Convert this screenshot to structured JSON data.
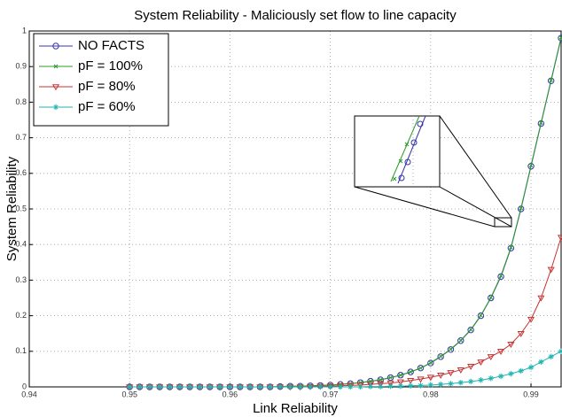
{
  "chart_data": {
    "type": "line",
    "title": "System Reliability - Maliciously set flow to line capacity",
    "xlabel": "Link Reliability",
    "ylabel": "System Reliability",
    "x": [
      0.95,
      0.951,
      0.952,
      0.953,
      0.954,
      0.955,
      0.956,
      0.957,
      0.958,
      0.959,
      0.96,
      0.961,
      0.962,
      0.963,
      0.964,
      0.965,
      0.966,
      0.967,
      0.968,
      0.969,
      0.97,
      0.971,
      0.972,
      0.973,
      0.974,
      0.975,
      0.976,
      0.977,
      0.978,
      0.979,
      0.98,
      0.981,
      0.982,
      0.983,
      0.984,
      0.985,
      0.986,
      0.987,
      0.988,
      0.989,
      0.99,
      0.991,
      0.992,
      0.993
    ],
    "series": [
      {
        "name": "NO FACTS",
        "color": "#3535a8",
        "marker": "circle",
        "values": [
          0,
          0,
          0,
          0,
          0,
          0,
          0,
          0,
          0,
          0,
          0,
          0,
          0,
          0,
          0,
          0.001,
          0.002,
          0.002,
          0.003,
          0.004,
          0.005,
          0.007,
          0.009,
          0.012,
          0.016,
          0.02,
          0.026,
          0.033,
          0.042,
          0.053,
          0.067,
          0.085,
          0.105,
          0.13,
          0.16,
          0.2,
          0.25,
          0.31,
          0.39,
          0.5,
          0.62,
          0.74,
          0.86,
          0.98
        ]
      },
      {
        "name": "pF = 100%",
        "color": "#2e9a2e",
        "marker": "x",
        "values": [
          0,
          0,
          0,
          0,
          0,
          0,
          0,
          0,
          0,
          0,
          0,
          0,
          0,
          0,
          0,
          0.001,
          0.002,
          0.002,
          0.003,
          0.004,
          0.005,
          0.007,
          0.009,
          0.012,
          0.016,
          0.02,
          0.026,
          0.033,
          0.042,
          0.053,
          0.068,
          0.086,
          0.106,
          0.131,
          0.161,
          0.201,
          0.251,
          0.312,
          0.392,
          0.502,
          0.622,
          0.742,
          0.862,
          0.982
        ]
      },
      {
        "name": "pF = 80%",
        "color": "#c83232",
        "marker": "triangle",
        "values": [
          0,
          0,
          0,
          0,
          0,
          0,
          0,
          0,
          0,
          0,
          0,
          0,
          0,
          0,
          0,
          0,
          0,
          0,
          0.001,
          0.002,
          0.002,
          0.003,
          0.004,
          0.005,
          0.007,
          0.009,
          0.011,
          0.014,
          0.018,
          0.022,
          0.027,
          0.033,
          0.04,
          0.048,
          0.058,
          0.07,
          0.085,
          0.1,
          0.12,
          0.15,
          0.19,
          0.25,
          0.33,
          0.42
        ]
      },
      {
        "name": "pF = 60%",
        "color": "#1fb5b0",
        "marker": "star",
        "values": [
          0,
          0,
          0,
          0,
          0,
          0,
          0,
          0,
          0,
          0,
          0,
          0,
          0,
          0,
          0,
          0,
          0,
          0,
          0,
          0,
          0,
          0,
          0,
          0,
          0.001,
          0.001,
          0.002,
          0.002,
          0.003,
          0.004,
          0.005,
          0.007,
          0.009,
          0.012,
          0.015,
          0.019,
          0.024,
          0.03,
          0.037,
          0.045,
          0.055,
          0.07,
          0.085,
          0.1
        ]
      }
    ],
    "xlim": [
      0.94,
      0.993
    ],
    "xticks": [
      0.94,
      0.95,
      0.96,
      0.97,
      0.98,
      0.99
    ],
    "ylim": [
      0,
      1
    ],
    "yticks": [
      0,
      0.1,
      0.2,
      0.3,
      0.4,
      0.5,
      0.6,
      0.7,
      0.8,
      0.9,
      1
    ],
    "grid": true,
    "legend": "upper left"
  }
}
